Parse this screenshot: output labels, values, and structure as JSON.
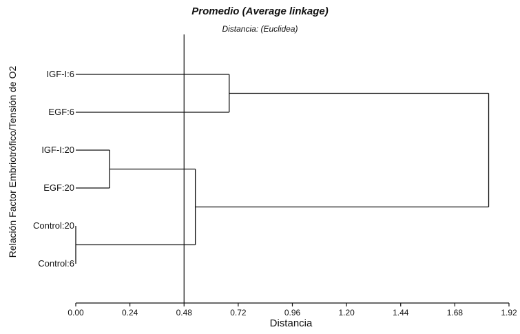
{
  "chart_data": {
    "type": "dendrogram",
    "title": "Promedio (Average linkage)",
    "subtitle": "Distancia: (Euclidea)",
    "xlabel": "Distancia",
    "ylabel": "Relación Factor Embriotrófico/Tensión de O2",
    "xlim": [
      0,
      1.92
    ],
    "xticks": [
      "0.00",
      "0.24",
      "0.48",
      "0.72",
      "0.96",
      "1.20",
      "1.44",
      "1.68",
      "1.92"
    ],
    "cut_line": 0.48,
    "leaves": [
      "IGF-I:6",
      "EGF:6",
      "IGF-I:20",
      "EGF:20",
      "Control:20",
      "Control:6"
    ],
    "merges": [
      {
        "left": "Control:20",
        "right": "Control:6",
        "height": 0.0
      },
      {
        "left": "IGF-I:20",
        "right": "EGF:20",
        "height": 0.15
      },
      {
        "left": "IGF-I:6",
        "right": "EGF:6",
        "height": 0.68
      },
      {
        "left": "IGF-I:20 + EGF:20",
        "right": "Control:20 + Control:6",
        "height": 0.53
      },
      {
        "left": "IGF-I:6 + EGF:6",
        "right": "IGF-I:20 + EGF:20 + Control:20 + Control:6",
        "height": 1.83
      }
    ]
  }
}
